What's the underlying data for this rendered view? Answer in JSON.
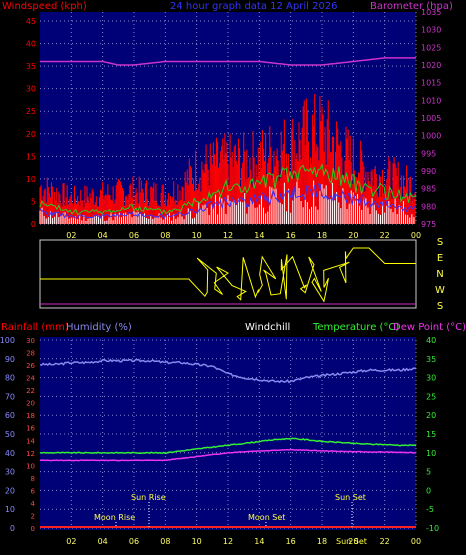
{
  "header": {
    "windspeed_label": "Windspeed (kph)",
    "title": "24 hour graph data  12 April 2026",
    "barometer_label": "Barometer (hpa)"
  },
  "x_ticks": [
    "02",
    "04",
    "06",
    "08",
    "10",
    "12",
    "14",
    "16",
    "18",
    "20",
    "22",
    "00"
  ],
  "wind_panel": {
    "y_ticks": [
      "0",
      "5",
      "10",
      "15",
      "20",
      "25",
      "30",
      "35",
      "40",
      "45"
    ],
    "baro_ticks": [
      "975",
      "980",
      "985",
      "990",
      "995",
      "1000",
      "1005",
      "1010",
      "1015",
      "1020",
      "1025",
      "1030",
      "1035"
    ]
  },
  "direction_panel": {
    "labels": [
      "S",
      "E",
      "N",
      "W",
      "S"
    ]
  },
  "climate_panel": {
    "rain_label": "Rainfall (mm)",
    "humidity_label": "Humidity (%)",
    "windchill_label": "Windchill",
    "temperature_label": "Temperature (°C)",
    "dewpoint_label": "Dew Point (°C)",
    "rain_ticks": [
      "0",
      "10",
      "20",
      "30",
      "40",
      "50",
      "60",
      "70",
      "80",
      "90",
      "100"
    ],
    "humidity_ticks": [
      "0",
      "2",
      "4",
      "6",
      "8",
      "10",
      "12",
      "14",
      "16",
      "18",
      "20",
      "22",
      "24",
      "26",
      "28",
      "30"
    ],
    "temp_ticks": [
      "-10",
      "-5",
      "0",
      "5",
      "10",
      "15",
      "20",
      "25",
      "30",
      "35",
      "40"
    ],
    "events": {
      "sun_rise": "Sun Rise",
      "sun_set": "Sun Set",
      "moon_rise": "Moon Rise",
      "moon_set": "Moon Set",
      "sun_set_bottom": "Sun Set"
    }
  },
  "colors": {
    "wind_avg": "#ff0000",
    "wind_gust": "#22cc22",
    "wind_low": "#3333ff",
    "calm": "#ffffff",
    "barometer": "#cc33cc",
    "direction": "#ffff00",
    "humidity": "#8888ee",
    "temperature": "#33ee33",
    "dewpoint": "#ee33ee",
    "rain": "#ff2222",
    "panel_bg": "#000077"
  },
  "chart_data": [
    {
      "type": "area",
      "x_range_hours": [
        0,
        24
      ],
      "ylim": [
        0,
        47
      ],
      "y2lim": [
        975,
        1035
      ],
      "series": [
        {
          "name": "wind speed",
          "x": [
            0,
            2,
            4,
            6,
            8,
            9,
            10,
            11,
            12,
            13,
            14,
            15,
            16,
            17,
            18,
            19,
            20,
            21,
            22,
            23,
            24
          ],
          "values": [
            5,
            3,
            3,
            4,
            3,
            4,
            6,
            8,
            9,
            9,
            10,
            11,
            12,
            13,
            13,
            12,
            10,
            9,
            8,
            7,
            6
          ]
        },
        {
          "name": "wind gust",
          "x": [
            0,
            2,
            4,
            6,
            8,
            9,
            10,
            11,
            12,
            13,
            14,
            15,
            16,
            17,
            18,
            19,
            20,
            21,
            22,
            23,
            24
          ],
          "values": [
            10,
            7,
            8,
            9,
            8,
            10,
            15,
            16,
            17,
            17,
            18,
            20,
            21,
            24,
            25,
            21,
            17,
            14,
            13,
            12,
            10
          ]
        },
        {
          "name": "barometer",
          "x": [
            0,
            2,
            4,
            5,
            6,
            8,
            10,
            12,
            14,
            16,
            18,
            20,
            22,
            24
          ],
          "values": [
            1021,
            1021,
            1021,
            1020,
            1020,
            1021,
            1021,
            1021,
            1021,
            1020,
            1020,
            1021,
            1022,
            1022
          ]
        }
      ]
    },
    {
      "type": "line",
      "x_range_hours": [
        0,
        24
      ],
      "ylim": [
        "S",
        "S"
      ],
      "series": [
        {
          "name": "wind direction",
          "x": [
            0,
            9.5,
            10,
            11,
            12,
            13,
            14,
            15,
            16,
            17,
            18,
            19,
            20,
            21,
            22,
            23,
            24
          ],
          "values": [
            "N",
            "N",
            "W",
            "S",
            "W",
            "S",
            "W",
            "S",
            "W",
            "S",
            "S",
            "S",
            "S",
            "S",
            "E",
            "E",
            "E"
          ]
        }
      ]
    },
    {
      "type": "line",
      "x_range_hours": [
        0,
        24
      ],
      "ylim": [
        0,
        100
      ],
      "y2lim": [
        -10,
        40
      ],
      "series": [
        {
          "name": "Humidity",
          "x": [
            0,
            1,
            2,
            3,
            4,
            5,
            6,
            7,
            8,
            9,
            10,
            11,
            12,
            13,
            14,
            15,
            16,
            17,
            18,
            19,
            20,
            21,
            22,
            23,
            24
          ],
          "values": [
            87,
            87,
            88,
            88,
            89,
            89,
            89,
            89,
            88,
            88,
            87,
            86,
            82,
            80,
            79,
            78,
            78,
            80,
            81,
            82,
            83,
            84,
            84,
            84,
            85
          ]
        },
        {
          "name": "Temperature",
          "x": [
            0,
            1,
            2,
            3,
            4,
            5,
            6,
            7,
            8,
            9,
            10,
            11,
            12,
            13,
            14,
            15,
            16,
            17,
            18,
            19,
            20,
            21,
            22,
            23,
            24
          ],
          "values": [
            10,
            10,
            10,
            10,
            10,
            10,
            10,
            10,
            10,
            10.5,
            11,
            11.5,
            12,
            12.5,
            13,
            13.5,
            13.8,
            13.5,
            13,
            12.8,
            12.5,
            12.3,
            12.2,
            12,
            12
          ]
        },
        {
          "name": "Dew Point",
          "x": [
            0,
            1,
            2,
            3,
            4,
            5,
            6,
            7,
            8,
            9,
            10,
            11,
            12,
            13,
            14,
            15,
            16,
            17,
            18,
            19,
            20,
            21,
            22,
            23,
            24
          ],
          "values": [
            8,
            8,
            8,
            8,
            8,
            8,
            8,
            8,
            8,
            8.5,
            9,
            9.5,
            10,
            10.3,
            10.5,
            10.7,
            10.8,
            10.7,
            10.5,
            10.4,
            10.3,
            10.2,
            10.2,
            10.1,
            10
          ]
        },
        {
          "name": "Rainfall",
          "x": [
            0,
            24
          ],
          "values": [
            0,
            0
          ]
        }
      ]
    }
  ]
}
